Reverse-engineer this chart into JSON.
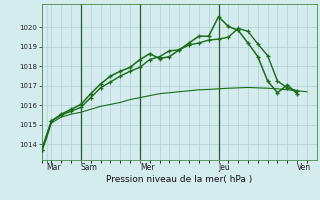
{
  "bg_color": "#d4ecee",
  "grid_color": "#b0d0d4",
  "line_color": "#1a6b1a",
  "dark_line_color": "#1a5a1a",
  "title": "Pression niveau de la mer( hPa )",
  "ylabel_vals": [
    1014,
    1015,
    1016,
    1017,
    1018,
    1019,
    1020
  ],
  "ylim": [
    1013.2,
    1021.2
  ],
  "xlim": [
    0,
    56
  ],
  "series1_x": [
    0,
    1,
    2,
    4,
    6,
    8,
    10,
    12,
    14,
    16,
    18,
    20,
    22,
    24,
    26,
    28,
    30,
    32,
    34,
    36,
    38,
    40,
    42,
    44,
    46,
    48,
    50,
    52,
    54
  ],
  "series1_y": [
    1013.6,
    1014.3,
    1015.1,
    1015.4,
    1015.55,
    1015.65,
    1015.8,
    1015.95,
    1016.05,
    1016.15,
    1016.3,
    1016.4,
    1016.5,
    1016.6,
    1016.65,
    1016.7,
    1016.75,
    1016.8,
    1016.82,
    1016.85,
    1016.88,
    1016.9,
    1016.92,
    1016.9,
    1016.88,
    1016.85,
    1016.8,
    1016.75,
    1016.7
  ],
  "series2_x": [
    0,
    2,
    4,
    6,
    8,
    10,
    12,
    14,
    16,
    18,
    20,
    22,
    24,
    26,
    28,
    30,
    32,
    34,
    36,
    38,
    40,
    42,
    44,
    46,
    48,
    50,
    52
  ],
  "series2_y": [
    1013.7,
    1015.2,
    1015.5,
    1015.7,
    1015.9,
    1016.4,
    1016.9,
    1017.2,
    1017.5,
    1017.75,
    1017.95,
    1018.35,
    1018.5,
    1018.8,
    1018.85,
    1019.1,
    1019.2,
    1019.35,
    1019.4,
    1019.5,
    1019.95,
    1019.8,
    1019.15,
    1018.55,
    1017.25,
    1016.9,
    1016.75
  ],
  "series3_x": [
    0,
    2,
    4,
    6,
    8,
    10,
    12,
    14,
    16,
    18,
    20,
    22,
    24,
    26,
    28,
    30,
    32,
    34,
    36,
    38,
    40,
    42,
    44,
    46,
    48,
    50,
    52
  ],
  "series3_y": [
    1013.7,
    1015.2,
    1015.55,
    1015.8,
    1016.05,
    1016.6,
    1017.1,
    1017.5,
    1017.75,
    1017.95,
    1018.35,
    1018.65,
    1018.4,
    1018.5,
    1018.85,
    1019.2,
    1019.55,
    1019.55,
    1020.55,
    1020.05,
    1019.85,
    1019.2,
    1018.5,
    1017.25,
    1016.65,
    1017.05,
    1016.6
  ],
  "vline_x": [
    8,
    20,
    36
  ],
  "day_positions": [
    1,
    8,
    20,
    36,
    52
  ],
  "day_labels": [
    "Mar",
    "Sam",
    "Mer",
    "Jeu",
    "Ven"
  ],
  "minor_x_ticks": [
    0,
    2,
    4,
    6,
    8,
    10,
    12,
    14,
    16,
    18,
    20,
    22,
    24,
    26,
    28,
    30,
    32,
    34,
    36,
    38,
    40,
    42,
    44,
    46,
    48,
    50,
    52,
    54
  ]
}
